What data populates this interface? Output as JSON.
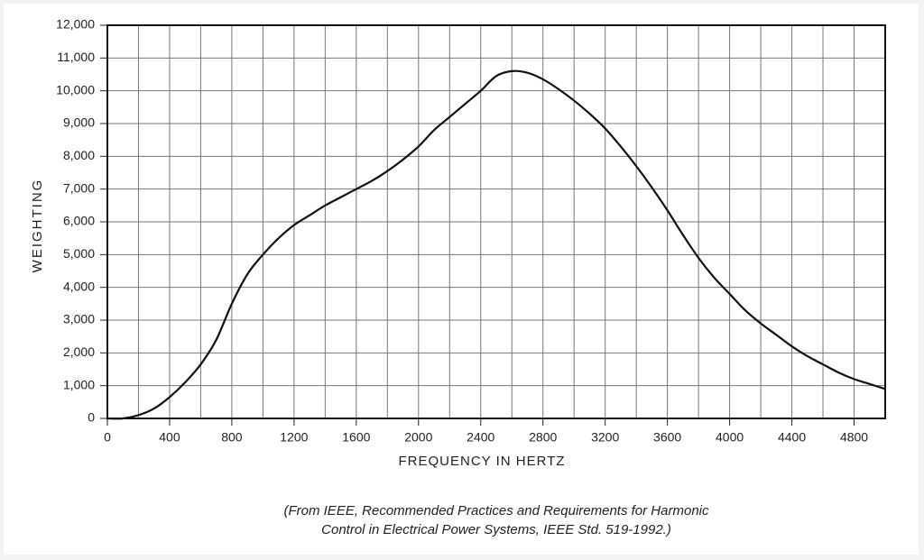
{
  "chart_data": {
    "type": "line",
    "x_label": "FREQUENCY IN HERTZ",
    "y_label": "WEIGHTING",
    "caption_lines": [
      "(From IEEE, Recommended Practices and Requirements for Harmonic",
      "Control in Electrical Power Systems, IEEE Std. 519-1992.)"
    ],
    "xlim": [
      0,
      5000
    ],
    "ylim": [
      0,
      12000
    ],
    "xticks": [
      0,
      400,
      800,
      1200,
      1600,
      2000,
      2400,
      2800,
      3200,
      3600,
      4000,
      4400,
      4800
    ],
    "x_minor_ticks": [
      200,
      600,
      1000,
      1400,
      1800,
      2200,
      2600,
      3000,
      3400,
      3800,
      4200,
      4600
    ],
    "yticks": [
      0,
      {
        "value": 1000,
        "label": "1,000"
      },
      {
        "value": 2000,
        "label": "2,000"
      },
      {
        "value": 3000,
        "label": "3,000"
      },
      {
        "value": 4000,
        "label": "4,000"
      },
      {
        "value": 5000,
        "label": "5,000"
      },
      {
        "value": 6000,
        "label": "6,000"
      },
      {
        "value": 7000,
        "label": "7,000"
      },
      {
        "value": 8000,
        "label": "8,000"
      },
      {
        "value": 9000,
        "label": "9,000"
      },
      {
        "value": 10000,
        "label": "10,000"
      },
      {
        "value": 11000,
        "label": "11,000"
      },
      {
        "value": 12000,
        "label": "12,000"
      }
    ],
    "grid": true,
    "color": "#111111",
    "x": [
      0,
      100,
      200,
      300,
      400,
      500,
      600,
      700,
      800,
      900,
      1000,
      1100,
      1200,
      1300,
      1400,
      1500,
      1600,
      1700,
      1800,
      1900,
      2000,
      2100,
      2200,
      2300,
      2400,
      2500,
      2600,
      2700,
      2800,
      2900,
      3000,
      3100,
      3200,
      3300,
      3400,
      3500,
      3600,
      3700,
      3800,
      3900,
      4000,
      4100,
      4200,
      4300,
      4400,
      4500,
      4600,
      4700,
      4800,
      4900,
      5000
    ],
    "values": [
      0,
      0,
      100,
      300,
      650,
      1100,
      1650,
      2400,
      3500,
      4400,
      5000,
      5500,
      5900,
      6200,
      6500,
      6750,
      7000,
      7250,
      7550,
      7900,
      8300,
      8800,
      9200,
      9600,
      10000,
      10450,
      10600,
      10550,
      10350,
      10050,
      9700,
      9300,
      8850,
      8300,
      7700,
      7050,
      6350,
      5600,
      4900,
      4300,
      3800,
      3300,
      2900,
      2550,
      2200,
      1900,
      1650,
      1400,
      1200,
      1050,
      900
    ]
  }
}
